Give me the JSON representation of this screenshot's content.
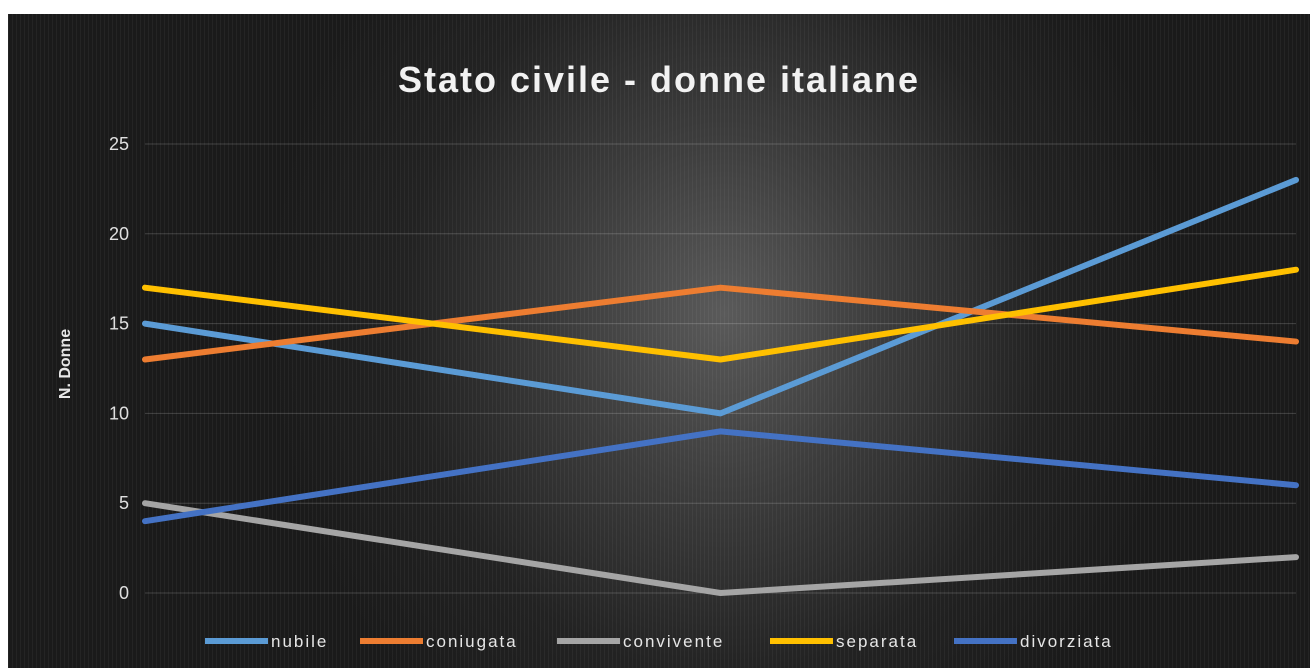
{
  "chart_data": {
    "type": "line",
    "title": "Stato civile - donne italiane",
    "xlabel": "",
    "ylabel": "N. Donne",
    "ylim": [
      0,
      25
    ],
    "yticks": [
      0,
      5,
      10,
      15,
      20,
      25
    ],
    "categories": [
      "",
      "",
      ""
    ],
    "grid": true,
    "legend_position": "bottom",
    "series": [
      {
        "name": "nubile",
        "color": "#5b9bd5",
        "values": [
          15,
          10,
          23
        ]
      },
      {
        "name": "coniugata",
        "color": "#ed7d31",
        "values": [
          13,
          17,
          14
        ]
      },
      {
        "name": "convivente",
        "color": "#a5a5a5",
        "values": [
          5,
          0,
          2
        ]
      },
      {
        "name": "separata",
        "color": "#ffc000",
        "values": [
          17,
          13,
          18
        ]
      },
      {
        "name": "divorziata",
        "color": "#4472c4",
        "values": [
          4,
          9,
          6
        ]
      }
    ]
  }
}
